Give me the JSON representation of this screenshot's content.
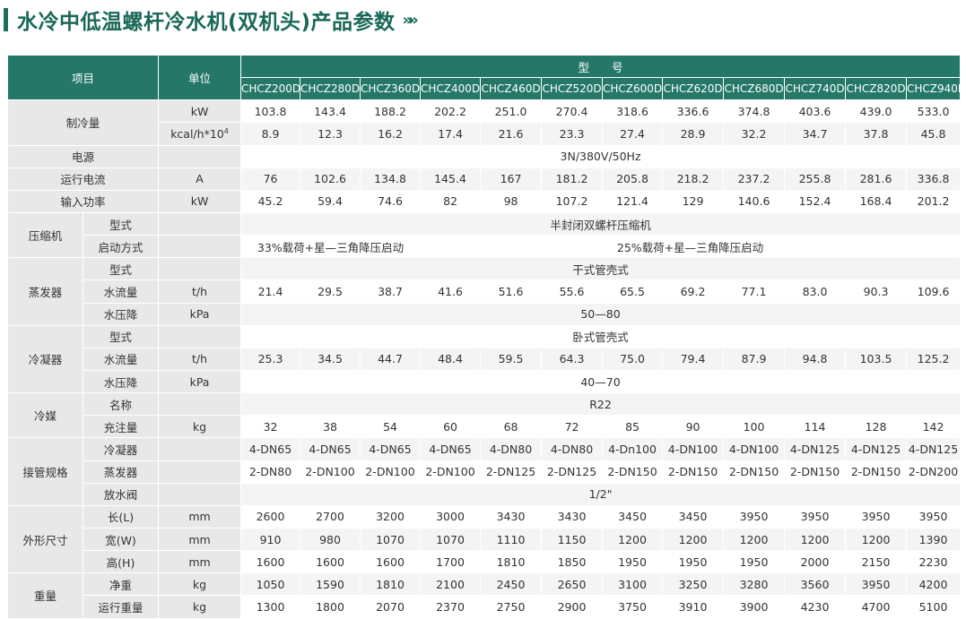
{
  "title": "水冷中低温螺杆冷水机(双机头)产品参数",
  "arrows_icon": "»»",
  "accent": "#257768",
  "header": {
    "item": "项目",
    "unit": "单位",
    "model": "型　　号",
    "models": [
      "CHCZ200D",
      "CHCZ280D",
      "CHCZ360D",
      "CHCZ400D",
      "CHCZ460D",
      "CHCZ520D",
      "CHCZ600D",
      "CHCZ620D",
      "CHCZ680D",
      "CHCZ740D",
      "CHCZ820D",
      "CHCZ940D"
    ]
  },
  "rows": {
    "cooling": {
      "label": "制冷量",
      "unit_kw": "kW",
      "unit_kcal": "kcal/h*10",
      "unit_kcal_sup": "4",
      "kw": [
        "103.8",
        "143.4",
        "188.2",
        "202.2",
        "251.0",
        "270.4",
        "318.6",
        "336.6",
        "374.8",
        "403.6",
        "439.0",
        "533.0"
      ],
      "kcal": [
        "8.9",
        "12.3",
        "16.2",
        "17.4",
        "21.6",
        "23.3",
        "27.4",
        "28.9",
        "32.2",
        "34.7",
        "37.8",
        "45.8"
      ]
    },
    "power_supply": {
      "label": "电源",
      "value": "3N/380V/50Hz"
    },
    "current": {
      "label": "运行电流",
      "unit": "A",
      "values": [
        "76",
        "102.6",
        "134.8",
        "145.4",
        "167",
        "181.2",
        "205.8",
        "218.2",
        "237.2",
        "255.8",
        "281.6",
        "336.8"
      ]
    },
    "input_power": {
      "label": "输入功率",
      "unit": "kW",
      "values": [
        "45.2",
        "59.4",
        "74.6",
        "82",
        "98",
        "107.2",
        "121.4",
        "129",
        "140.6",
        "152.4",
        "168.4",
        "201.2"
      ]
    },
    "compressor": {
      "label": "压缩机",
      "type_label": "型式",
      "type_value": "半封闭双螺杆压缩机",
      "start_label": "启动方式",
      "start_a": "33%载荷+星—三角降压启动",
      "start_b": "25%载荷+星—三角降压启动"
    },
    "evaporator": {
      "label": "蒸发器",
      "type_label": "型式",
      "type_value": "干式管壳式",
      "flow_label": "水流量",
      "flow_unit": "t/h",
      "flow": [
        "21.4",
        "29.5",
        "38.7",
        "41.6",
        "51.6",
        "55.6",
        "65.5",
        "69.2",
        "77.1",
        "83.0",
        "90.3",
        "109.6"
      ],
      "drop_label": "水压降",
      "drop_unit": "kPa",
      "drop_value": "50—80"
    },
    "condenser": {
      "label": "冷凝器",
      "type_label": "型式",
      "type_value": "卧式管壳式",
      "flow_label": "水流量",
      "flow_unit": "t/h",
      "flow": [
        "25.3",
        "34.5",
        "44.7",
        "48.4",
        "59.5",
        "64.3",
        "75.0",
        "79.4",
        "87.9",
        "94.8",
        "103.5",
        "125.2"
      ],
      "drop_label": "水压降",
      "drop_unit": "kPa",
      "drop_value": "40—70"
    },
    "refrigerant": {
      "label": "冷媒",
      "name_label": "名称",
      "name_value": "R22",
      "charge_label": "充注量",
      "charge_unit": "kg",
      "charge": [
        "32",
        "38",
        "54",
        "60",
        "68",
        "72",
        "85",
        "90",
        "100",
        "114",
        "128",
        "142"
      ]
    },
    "piping": {
      "label": "接管规格",
      "cond_label": "冷凝器",
      "cond": [
        "4-DN65",
        "4-DN65",
        "4-DN65",
        "4-DN65",
        "4-DN80",
        "4-DN80",
        "4-Dn100",
        "4-DN100",
        "4-DN100",
        "4-DN125",
        "4-DN125",
        "4-DN125"
      ],
      "evap_label": "蒸发器",
      "evap": [
        "2-DN80",
        "2-DN100",
        "2-DN100",
        "2-DN100",
        "2-DN125",
        "2-DN125",
        "2-DN150",
        "2-DN150",
        "2-DN150",
        "2-DN150",
        "2-DN150",
        "2-DN200"
      ],
      "drain_label": "放水阀",
      "drain_value": "1/2\""
    },
    "dimensions": {
      "label": "外形尺寸",
      "l_label": "长(L)",
      "w_label": "宽(W)",
      "h_label": "高(H)",
      "unit": "mm",
      "l": [
        "2600",
        "2700",
        "3200",
        "3000",
        "3430",
        "3430",
        "3450",
        "3450",
        "3950",
        "3950",
        "3950",
        "3950"
      ],
      "w": [
        "910",
        "980",
        "1070",
        "1070",
        "1110",
        "1150",
        "1200",
        "1200",
        "1200",
        "1200",
        "1200",
        "1390"
      ],
      "h": [
        "1600",
        "1600",
        "1600",
        "1700",
        "1810",
        "1850",
        "1950",
        "1950",
        "1950",
        "2000",
        "2150",
        "2230"
      ]
    },
    "weight": {
      "label": "重量",
      "net_label": "净重",
      "op_label": "运行重量",
      "unit": "kg",
      "net": [
        "1050",
        "1590",
        "1810",
        "2100",
        "2450",
        "2650",
        "3100",
        "3250",
        "3280",
        "3560",
        "3950",
        "4200"
      ],
      "op": [
        "1300",
        "1800",
        "2070",
        "2370",
        "2750",
        "2900",
        "3750",
        "3910",
        "3900",
        "4230",
        "4700",
        "5100"
      ]
    }
  }
}
